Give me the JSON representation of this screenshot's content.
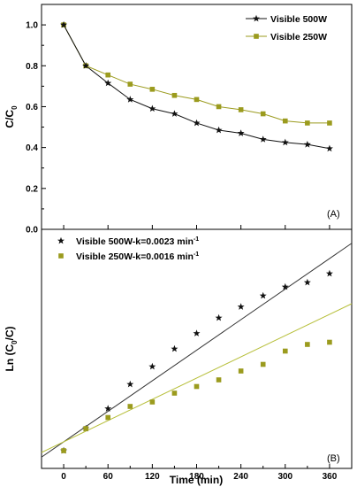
{
  "colors": {
    "series_500": "#111111",
    "series_250": "#9b9b1e",
    "fit_500": "#333333",
    "fit_250": "#b7bf3a"
  },
  "chart_data": [
    {
      "type": "line",
      "panel_label": "(A)",
      "ylabel": "C/C",
      "ylabel_sub": "0",
      "xlim": [
        -30,
        390
      ],
      "ylim": [
        0.0,
        1.1
      ],
      "yticks": [
        "0.0",
        "0.2",
        "0.4",
        "0.6",
        "0.8",
        "1.0"
      ],
      "legend_position": "top-right",
      "series": [
        {
          "name": "Visible 500W",
          "marker": "star",
          "x": [
            0,
            30,
            60,
            90,
            120,
            150,
            180,
            210,
            240,
            270,
            300,
            330,
            360
          ],
          "y": [
            1.0,
            0.8,
            0.715,
            0.635,
            0.59,
            0.565,
            0.52,
            0.485,
            0.47,
            0.44,
            0.425,
            0.415,
            0.395
          ]
        },
        {
          "name": "Visible 250W",
          "marker": "square",
          "x": [
            0,
            30,
            60,
            90,
            120,
            150,
            180,
            210,
            240,
            270,
            300,
            330,
            360
          ],
          "y": [
            1.0,
            0.8,
            0.755,
            0.71,
            0.685,
            0.655,
            0.635,
            0.6,
            0.585,
            0.565,
            0.53,
            0.52,
            0.52
          ]
        }
      ]
    },
    {
      "type": "scatter",
      "panel_label": "(B)",
      "ylabel_parts": [
        "Ln (C",
        "0",
        "/C)"
      ],
      "xlabel": "Time (min)",
      "xlim": [
        -30,
        390
      ],
      "ylim": [
        -0.08,
        1.0
      ],
      "xticks": [
        "0",
        "60",
        "120",
        "180",
        "240",
        "300",
        "360"
      ],
      "legend_position": "top-left",
      "series": [
        {
          "name": "Visible 500W-k=0.0023 min",
          "name_sup": "-1",
          "marker": "star",
          "slope": 0.0023,
          "intercept": 0.04,
          "x": [
            0,
            30,
            60,
            90,
            120,
            150,
            180,
            210,
            240,
            270,
            300,
            330,
            360
          ],
          "y": [
            0.0,
            0.1,
            0.19,
            0.3,
            0.38,
            0.46,
            0.53,
            0.6,
            0.65,
            0.7,
            0.74,
            0.76,
            0.8
          ]
        },
        {
          "name": "Visible 250W-k=0.0016 min",
          "name_sup": "-1",
          "marker": "square",
          "slope": 0.0016,
          "intercept": 0.04,
          "x": [
            0,
            30,
            60,
            90,
            120,
            150,
            180,
            210,
            240,
            270,
            300,
            330,
            360
          ],
          "y": [
            0.0,
            0.1,
            0.15,
            0.2,
            0.22,
            0.26,
            0.29,
            0.32,
            0.36,
            0.39,
            0.45,
            0.48,
            0.49
          ]
        }
      ]
    }
  ]
}
